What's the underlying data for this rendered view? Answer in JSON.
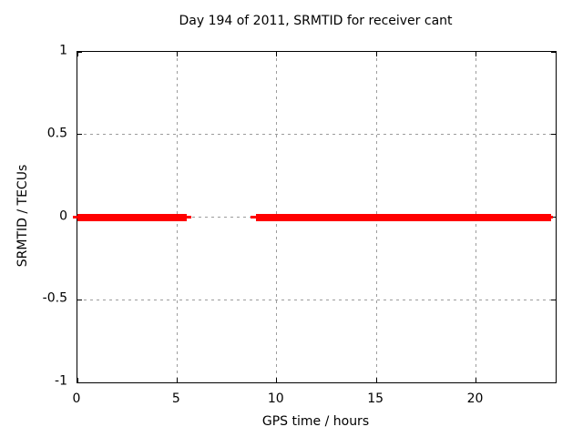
{
  "title": "Day 194 of 2011, SRMTID for receiver cant",
  "colors": {
    "line": "#ff0000",
    "grid": "#9c9c9c",
    "border": "#000000",
    "text": "#000000",
    "background": "#ffffff"
  },
  "chart_data": {
    "type": "line",
    "title": "Day 194 of 2011, SRMTID for receiver cant",
    "xlabel": "GPS time / hours",
    "ylabel": "SRMTID / TECUs",
    "xlim": [
      0,
      24
    ],
    "ylim": [
      -1,
      1
    ],
    "xticks": [
      0,
      5,
      10,
      15,
      20
    ],
    "xtick_labels": [
      "0",
      "5",
      "10",
      "15",
      "20"
    ],
    "yticks": [
      -1,
      -0.5,
      0,
      0.5,
      1
    ],
    "ytick_labels": [
      "-1",
      "-0.5",
      "0",
      "0.5",
      "1"
    ],
    "grid": true,
    "legend": "none",
    "series": [
      {
        "name": "SRMTID",
        "color": "#ff0000",
        "constant_value": 0,
        "segments": [
          {
            "x_start": -0.25,
            "x_end": 0.1,
            "y": 0,
            "weight": "thin"
          },
          {
            "x_start": 0,
            "x_end": 5.5,
            "y": 0,
            "weight": "thick"
          },
          {
            "x_start": 5.5,
            "x_end": 5.72,
            "y": 0,
            "weight": "thin"
          },
          {
            "x_start": 8.68,
            "x_end": 8.95,
            "y": 0,
            "weight": "thin"
          },
          {
            "x_start": 8.95,
            "x_end": 23.75,
            "y": 0,
            "weight": "thick"
          },
          {
            "x_start": 23.7,
            "x_end": 23.85,
            "y": 0,
            "weight": "thin"
          }
        ]
      }
    ]
  }
}
